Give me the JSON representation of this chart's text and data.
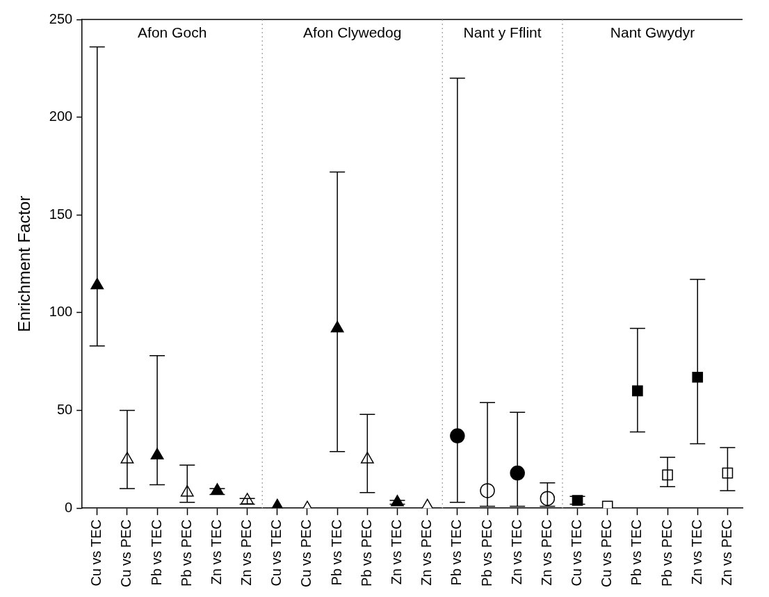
{
  "chart_data": {
    "type": "scatter",
    "ylabel": "Enrichment Factor",
    "ylim": [
      0,
      250
    ],
    "yticks": [
      0,
      50,
      100,
      150,
      200,
      250
    ],
    "grid": false,
    "legend": false,
    "annotations": [
      "Afon Goch",
      "Afon Clywedog",
      "Nant y Fflint",
      "Nant Gwydyr"
    ],
    "categories": [
      "Cu vs TEC",
      "Cu vs PEC",
      "Pb vs TEC",
      "Pb vs PEC",
      "Zn vs TEC",
      "Zn vs PEC",
      "Cu vs TEC",
      "Cu vs PEC",
      "Pb vs TEC",
      "Pb vs PEC",
      "Zn vs TEC",
      "Zn vs PEC",
      "Pb vs TEC",
      "Pb vs PEC",
      "Zn vs TEC",
      "Zn vs PEC",
      "Cu vs TEC",
      "Cu vs PEC",
      "Pb vs TEC",
      "Pb vs PEC",
      "Zn vs TEC",
      "Zn vs PEC"
    ],
    "series": [
      {
        "marker": "triangle",
        "color": "#000000",
        "colors": [
          "#000000",
          "#ffffff",
          "#000000",
          "#ffffff",
          "#000000",
          "#ffffff",
          null,
          null,
          null,
          null,
          null,
          null,
          null,
          null,
          null,
          null,
          null,
          null,
          null,
          null,
          null,
          null
        ],
        "values": [
          114,
          25,
          27,
          8,
          9,
          4,
          null,
          null,
          null,
          null,
          null,
          null,
          null,
          null,
          null,
          null,
          null,
          null,
          null,
          null,
          null,
          null
        ],
        "errors": [
          [
            83,
            236
          ],
          [
            10,
            50
          ],
          [
            12,
            78
          ],
          [
            3,
            22
          ],
          [
            7,
            10
          ],
          [
            2,
            5
          ],
          null,
          null,
          null,
          null,
          null,
          null,
          null,
          null,
          null,
          null,
          null,
          null,
          null,
          null,
          null,
          null
        ]
      },
      {
        "marker": "triangle",
        "color": "#000000",
        "colors": [
          null,
          null,
          null,
          null,
          null,
          null,
          "#000000",
          "#ffffff",
          "#000000",
          "#ffffff",
          "#000000",
          "#ffffff",
          null,
          null,
          null,
          null,
          null,
          null,
          null,
          null,
          null,
          null
        ],
        "values": [
          null,
          null,
          null,
          null,
          null,
          null,
          1,
          0,
          92,
          25,
          3,
          1,
          null,
          null,
          null,
          null,
          null,
          null,
          null,
          null,
          null,
          null
        ],
        "errors": [
          null,
          null,
          null,
          null,
          null,
          null,
          null,
          null,
          [
            29,
            172
          ],
          [
            8,
            48
          ],
          [
            2,
            4
          ],
          null,
          null,
          null,
          null,
          null,
          null,
          null,
          null,
          null,
          null,
          null
        ]
      },
      {
        "marker": "circle",
        "color": "#000000",
        "colors": [
          null,
          null,
          null,
          null,
          null,
          null,
          null,
          null,
          null,
          null,
          null,
          null,
          "#000000",
          "#ffffff",
          "#000000",
          "#ffffff",
          null,
          null,
          null,
          null,
          null,
          null
        ],
        "values": [
          null,
          null,
          null,
          null,
          null,
          null,
          null,
          null,
          null,
          null,
          null,
          null,
          37,
          9,
          18,
          5,
          null,
          null,
          null,
          null,
          null,
          null
        ],
        "errors": [
          null,
          null,
          null,
          null,
          null,
          null,
          null,
          null,
          null,
          null,
          null,
          null,
          [
            3,
            220
          ],
          [
            1,
            54
          ],
          [
            1,
            49
          ],
          [
            1,
            13
          ],
          null,
          null,
          null,
          null,
          null,
          null
        ]
      },
      {
        "marker": "square",
        "color": "#000000",
        "colors": [
          null,
          null,
          null,
          null,
          null,
          null,
          null,
          null,
          null,
          null,
          null,
          null,
          null,
          null,
          null,
          null,
          "#000000",
          "#ffffff",
          "#000000",
          "#ffffff",
          "#000000",
          "#ffffff"
        ],
        "values": [
          null,
          null,
          null,
          null,
          null,
          null,
          null,
          null,
          null,
          null,
          null,
          null,
          null,
          null,
          null,
          null,
          4,
          1,
          60,
          17,
          67,
          18
        ],
        "errors": [
          null,
          null,
          null,
          null,
          null,
          null,
          null,
          null,
          null,
          null,
          null,
          null,
          null,
          null,
          null,
          null,
          [
            2,
            6
          ],
          null,
          [
            39,
            92
          ],
          [
            11,
            26
          ],
          [
            33,
            117
          ],
          [
            9,
            31
          ]
        ]
      }
    ]
  }
}
